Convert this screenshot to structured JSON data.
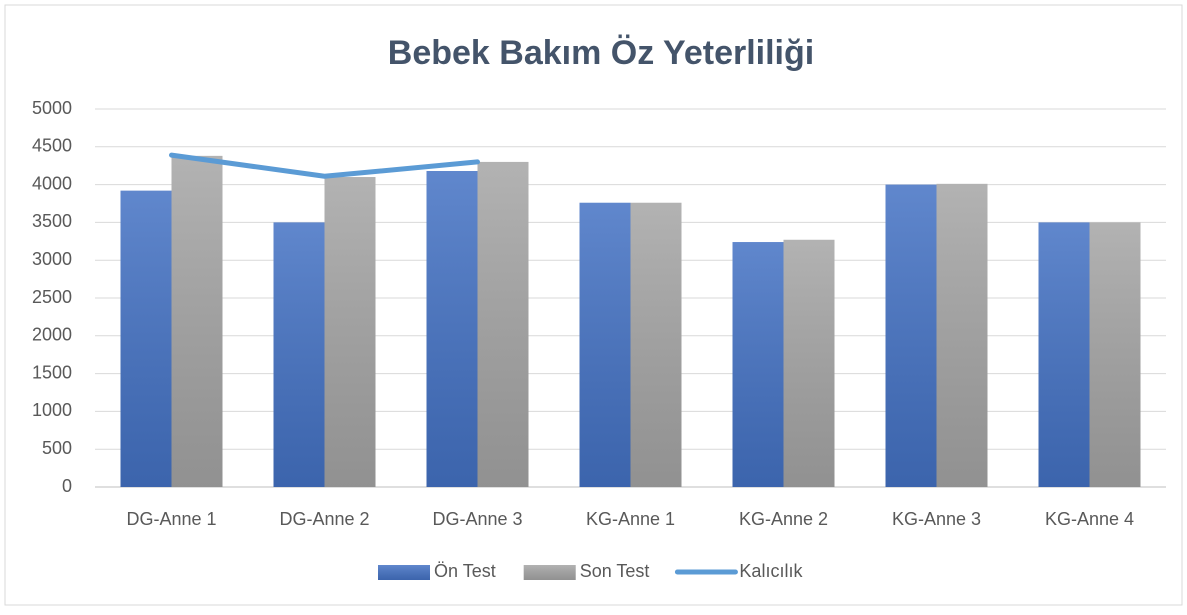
{
  "chart_data": {
    "type": "bar",
    "title": "Bebek Bakım Öz Yeterliliği",
    "categories": [
      "DG-Anne 1",
      "DG-Anne 2",
      "DG-Anne 3",
      "KG-Anne 1",
      "KG-Anne 2",
      "KG-Anne 3",
      "KG-Anne 4"
    ],
    "series": [
      {
        "name": "Ön Test",
        "color": "#4472c4",
        "values": [
          3920,
          3500,
          4180,
          3760,
          3240,
          4000,
          3500
        ]
      },
      {
        "name": "Son Test",
        "color": "#a5a5a5",
        "values": [
          4380,
          4100,
          4300,
          3760,
          3270,
          4010,
          3500
        ]
      },
      {
        "name": "Kalıcılık",
        "type": "line",
        "color": "#5b9bd5",
        "values": [
          4390,
          4110,
          4300,
          null,
          null,
          null,
          null
        ]
      }
    ],
    "ylim": [
      0,
      5000
    ],
    "yticks": [
      0,
      500,
      1000,
      1500,
      2000,
      2500,
      3000,
      3500,
      4000,
      4500,
      5000
    ],
    "grid": true,
    "legend": "bottom"
  }
}
